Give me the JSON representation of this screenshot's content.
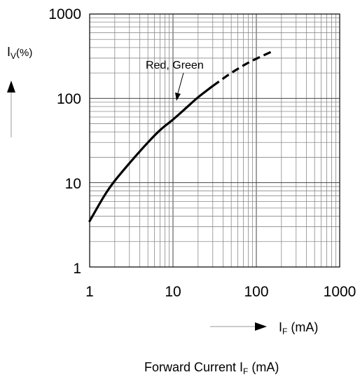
{
  "chart_data": {
    "type": "line",
    "x_scale": "log",
    "y_scale": "log",
    "xlim": [
      1,
      1000
    ],
    "ylim": [
      1,
      1000
    ],
    "grid": true,
    "x_ticks": [
      "1",
      "10",
      "100",
      "1000"
    ],
    "y_ticks": [
      "1000",
      "100",
      "10",
      "1"
    ],
    "xlabel": {
      "main": "I",
      "sub": "F",
      "unit": " (mA)"
    },
    "ylabel": {
      "main": "I",
      "sub": "V",
      "unit": "(%)"
    },
    "caption": {
      "main": "Forward Current I",
      "sub": "F",
      "unit": " (mA)"
    },
    "annotation": "Red, Green",
    "series": [
      {
        "name": "Red, Green",
        "color": "#000000",
        "solid": {
          "x": [
            1,
            1.5,
            2,
            3,
            5,
            7,
            10,
            15,
            20,
            30
          ],
          "y": [
            3.5,
            7,
            10.5,
            17,
            30,
            42,
            56,
            80,
            103,
            140
          ]
        },
        "dashed": {
          "x": [
            30,
            50,
            75,
            100,
            150
          ],
          "y": [
            140,
            200,
            255,
            295,
            355
          ]
        }
      }
    ]
  }
}
